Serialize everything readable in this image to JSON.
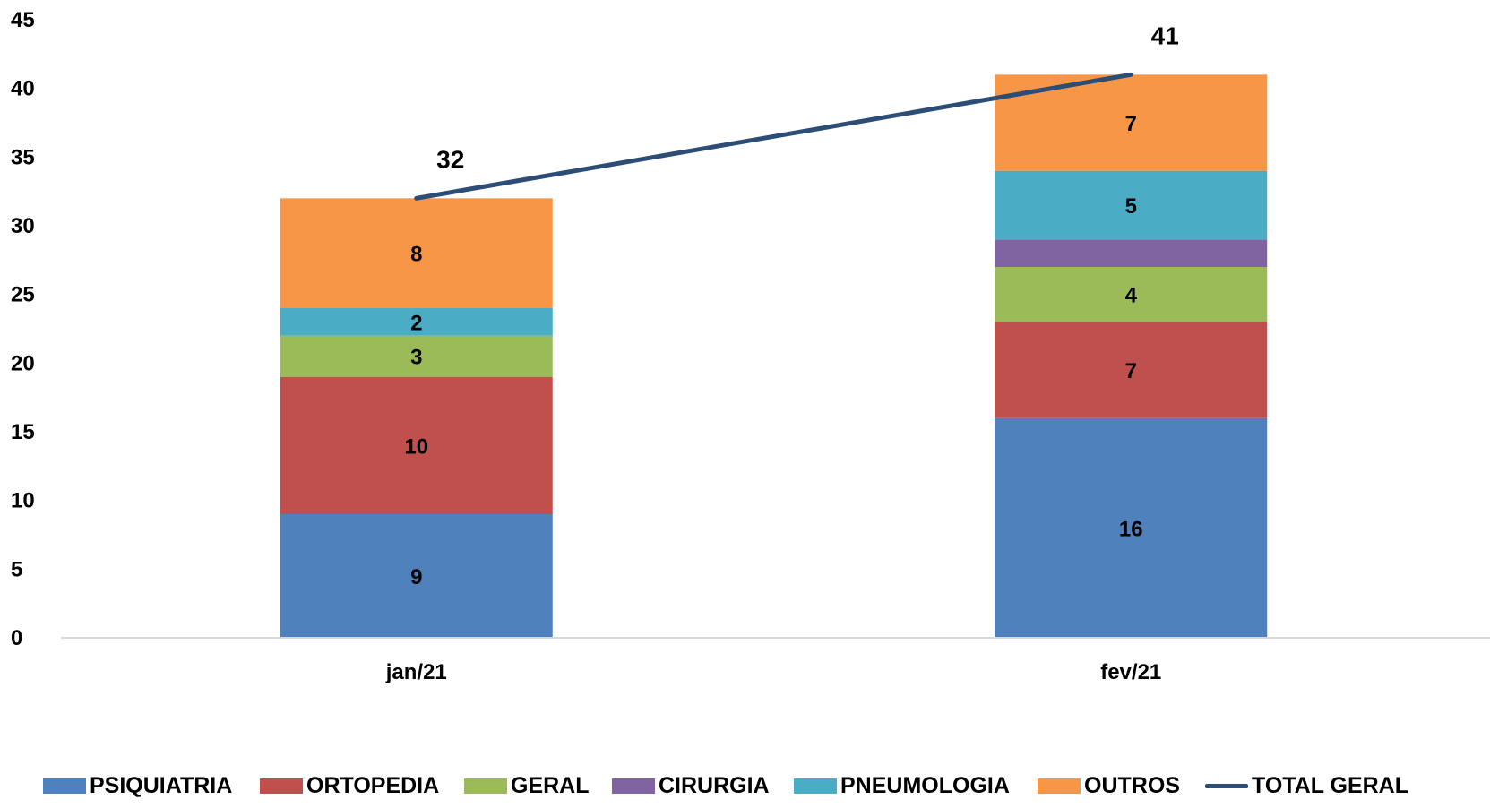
{
  "chart_data": {
    "type": "bar",
    "stacked": true,
    "categories": [
      "jan/21",
      "fev/21"
    ],
    "series": [
      {
        "name": "PSIQUIATRIA",
        "color": "#4F81BD",
        "values": [
          9,
          16
        ],
        "labels": [
          "9",
          "16"
        ]
      },
      {
        "name": "ORTOPEDIA",
        "color": "#C0504D",
        "values": [
          10,
          7
        ],
        "labels": [
          "10",
          "7"
        ]
      },
      {
        "name": "GERAL",
        "color": "#9BBB59",
        "values": [
          3,
          4
        ],
        "labels": [
          "3",
          "4"
        ]
      },
      {
        "name": "CIRURGIA",
        "color": "#8064A2",
        "values": [
          0,
          2
        ],
        "labels": [
          "",
          ""
        ]
      },
      {
        "name": "PNEUMOLOGIA",
        "color": "#4BACC6",
        "values": [
          2,
          5
        ],
        "labels": [
          "2",
          "5"
        ]
      },
      {
        "name": "OUTROS",
        "color": "#F79646",
        "values": [
          8,
          7
        ],
        "labels": [
          "8",
          "7"
        ]
      }
    ],
    "line_series": {
      "name": "TOTAL GERAL",
      "color": "#2C4D75",
      "values": [
        32,
        41
      ],
      "labels": [
        "32",
        "41"
      ]
    },
    "ylim": [
      0,
      45
    ],
    "yticks": [
      "0",
      "5",
      "10",
      "15",
      "20",
      "25",
      "30",
      "35",
      "40",
      "45"
    ],
    "title": "",
    "xlabel": "",
    "ylabel": "",
    "grid": false,
    "legend_position": "bottom"
  }
}
